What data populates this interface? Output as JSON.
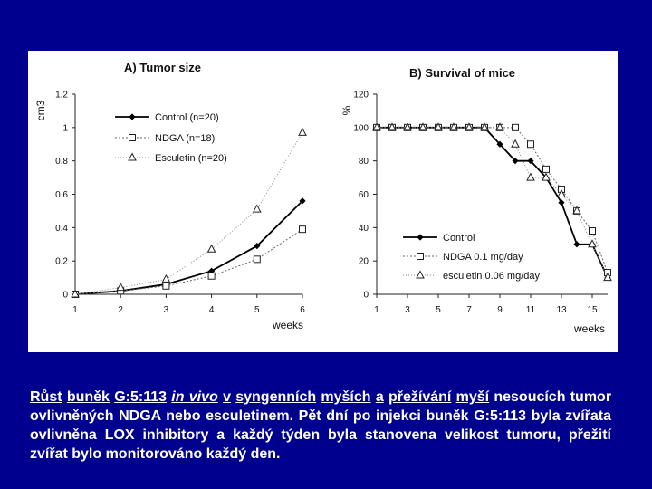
{
  "chart_data": [
    {
      "type": "line",
      "title": "A) Tumor size",
      "ylabel": "cm3",
      "xlabel": "weeks",
      "x": [
        1,
        2,
        3,
        4,
        5,
        6
      ],
      "xticks": [
        "1",
        "2",
        "3",
        "4",
        "5",
        "6"
      ],
      "ylim": [
        0,
        1.2
      ],
      "yticks": [
        "0",
        "0.2",
        "0.4",
        "0.6",
        "0.8",
        "1",
        "1.2"
      ],
      "legend_position": "top-left",
      "series": [
        {
          "name": "Control (n=20)",
          "marker": "diamond",
          "values": [
            0,
            0.02,
            0.06,
            0.14,
            0.29,
            0.56
          ]
        },
        {
          "name": "NDGA (n=18)",
          "marker": "square",
          "values": [
            0,
            0.02,
            0.05,
            0.11,
            0.21,
            0.39
          ]
        },
        {
          "name": "Esculetin (n=20)",
          "marker": "triangle",
          "values": [
            0,
            0.04,
            0.09,
            0.27,
            0.51,
            0.97
          ]
        }
      ]
    },
    {
      "type": "line",
      "title": "B) Survival of mice",
      "ylabel": "%",
      "xlabel": "weeks",
      "xlim": [
        1,
        16
      ],
      "xticks": [
        "1",
        "3",
        "5",
        "7",
        "9",
        "11",
        "13",
        "15"
      ],
      "ylim": [
        0,
        120
      ],
      "yticks": [
        "0",
        "20",
        "40",
        "60",
        "80",
        "100",
        "120"
      ],
      "legend_position": "bottom-left",
      "series": [
        {
          "name": "Control",
          "marker": "diamond",
          "x": [
            1,
            2,
            3,
            4,
            5,
            6,
            7,
            8,
            9,
            10,
            11,
            12,
            13,
            14,
            15,
            16
          ],
          "values": [
            100,
            100,
            100,
            100,
            100,
            100,
            100,
            100,
            90,
            80,
            80,
            70,
            55,
            30,
            30,
            10
          ]
        },
        {
          "name": "NDGA 0.1 mg/day",
          "marker": "square",
          "x": [
            1,
            2,
            3,
            4,
            5,
            6,
            7,
            8,
            9,
            10,
            11,
            12,
            13,
            14,
            15,
            16
          ],
          "values": [
            100,
            100,
            100,
            100,
            100,
            100,
            100,
            100,
            100,
            100,
            90,
            75,
            63,
            50,
            38,
            13
          ]
        },
        {
          "name": "esculetin 0.06 mg/day",
          "marker": "triangle",
          "x": [
            1,
            2,
            3,
            4,
            5,
            6,
            7,
            8,
            9,
            10,
            11,
            12,
            13,
            14,
            15,
            16
          ],
          "values": [
            100,
            100,
            100,
            100,
            100,
            100,
            100,
            100,
            100,
            90,
            70,
            70,
            60,
            50,
            30,
            10
          ]
        }
      ]
    }
  ],
  "caption": {
    "w1": "Růst",
    "w2": "buněk",
    "w3": "G:5:113",
    "w4": "in vivo",
    "w5": "v",
    "w6": "syngenních",
    "w7": "myších",
    "w8": "a",
    "w9": "přežívání",
    "w10": "myší",
    "rest": "nesoucích tumor ovlivněných NDGA nebo esculetinem. Pět dní po injekci buněk G:5:113 byla zvířata ovlivněna LOX inhibitory a každý týden byla stanovena velikost tumoru, přežití zvířat bylo monitorováno každý den."
  }
}
